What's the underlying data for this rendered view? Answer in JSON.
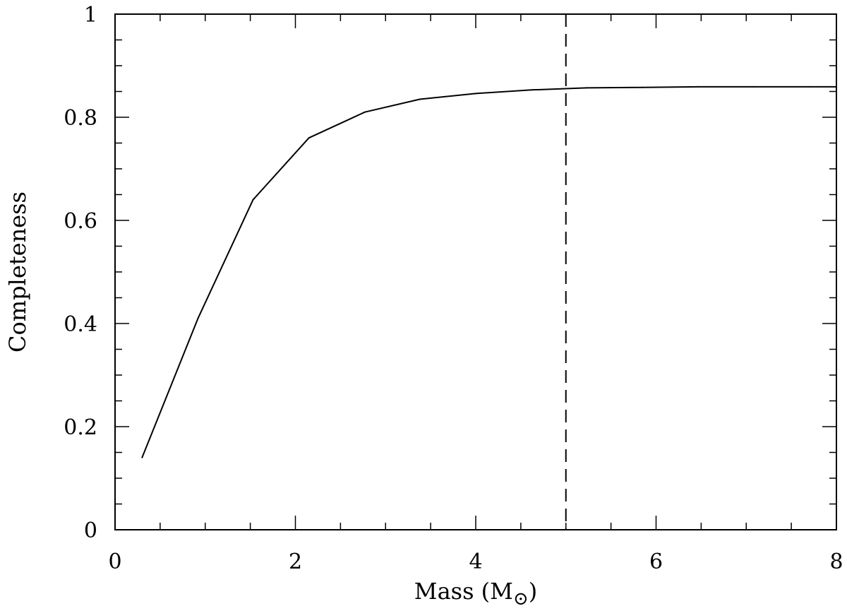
{
  "chart_data": {
    "type": "line",
    "title": "",
    "xlabel": "Mass (M",
    "xlabel_symbol": "⊙",
    "xlabel_close": ")",
    "ylabel": "Completeness",
    "xlim": [
      0,
      8
    ],
    "ylim": [
      0,
      1
    ],
    "x_major_ticks": [
      0,
      2,
      4,
      6,
      8
    ],
    "x_tick_labels": [
      "0",
      "2",
      "4",
      "6",
      "8"
    ],
    "x_minor_step": 0.5,
    "y_major_ticks": [
      0,
      0.2,
      0.4,
      0.6,
      0.8,
      1
    ],
    "y_tick_labels": [
      "0",
      "0.2",
      "0.4",
      "0.6",
      "0.8",
      "1"
    ],
    "y_minor_step": 0.05,
    "grid": false,
    "series": [
      {
        "x": [
          0.3,
          0.92,
          1.53,
          2.15,
          2.77,
          3.38,
          4.0,
          4.62,
          5.23,
          5.85,
          6.47,
          7.08,
          7.7,
          8.0
        ],
        "y": [
          0.14,
          0.41,
          0.64,
          0.76,
          0.81,
          0.835,
          0.846,
          0.853,
          0.857,
          0.858,
          0.859,
          0.859,
          0.859,
          0.859
        ],
        "color": "#000000",
        "style": "solid"
      }
    ],
    "reference_lines": [
      {
        "orientation": "vertical",
        "x": 5,
        "style": "dashed",
        "color": "#000000"
      }
    ]
  }
}
